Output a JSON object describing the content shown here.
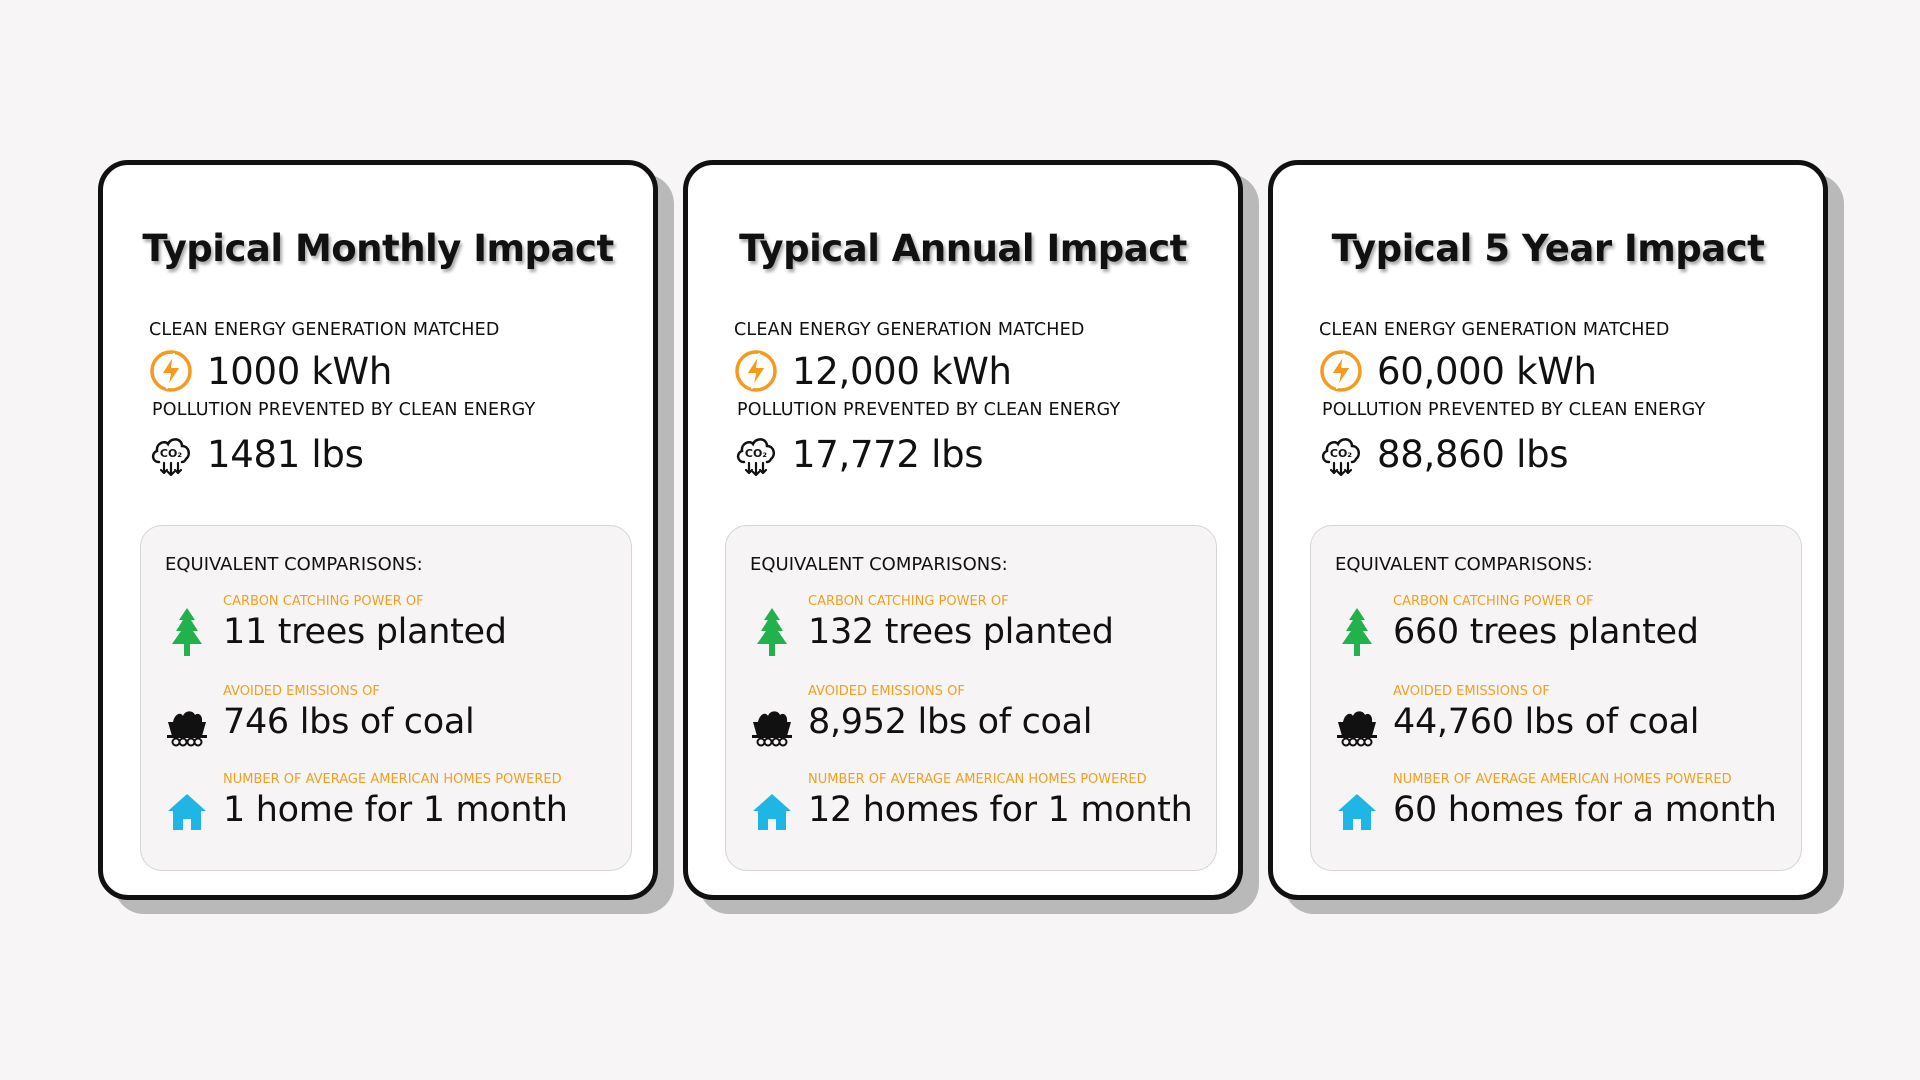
{
  "colors": {
    "background": "#f7f5f6",
    "card_border": "#111111",
    "bolt": "#f59a1b",
    "tree": "#22b24c",
    "home": "#1fb6e6",
    "label_accent": "#f0a020"
  },
  "labels": {
    "energy": "CLEAN ENERGY GENERATION MATCHED",
    "pollution": "POLLUTION PREVENTED BY CLEAN ENERGY",
    "comparisons_heading": "EQUIVALENT COMPARISONS:",
    "trees": "CARBON CATCHING POWER OF",
    "coal": "AVOIDED EMISSIONS OF",
    "homes": "NUMBER OF AVERAGE AMERICAN HOMES POWERED"
  },
  "icons": {
    "energy": "lightning-bolt-icon",
    "pollution": "co2-cloud-icon",
    "trees": "pine-tree-icon",
    "coal": "coal-cart-icon",
    "homes": "house-icon"
  },
  "cards": [
    {
      "title": "Typical Monthly Impact",
      "energy_value": "1000 kWh",
      "pollution_value": "1481 lbs",
      "trees_value": "11 trees planted",
      "coal_value": "746 lbs of coal",
      "homes_value": "1 home for 1 month"
    },
    {
      "title": "Typical Annual Impact",
      "energy_value": "12,000 kWh",
      "pollution_value": "17,772 lbs",
      "trees_value": "132 trees planted",
      "coal_value": "8,952 lbs of coal",
      "homes_value": "12 homes for 1 month"
    },
    {
      "title": "Typical 5 Year Impact",
      "energy_value": "60,000 kWh",
      "pollution_value": "88,860 lbs",
      "trees_value": "660 trees planted",
      "coal_value": "44,760 lbs of coal",
      "homes_value": "60 homes for a month"
    }
  ]
}
